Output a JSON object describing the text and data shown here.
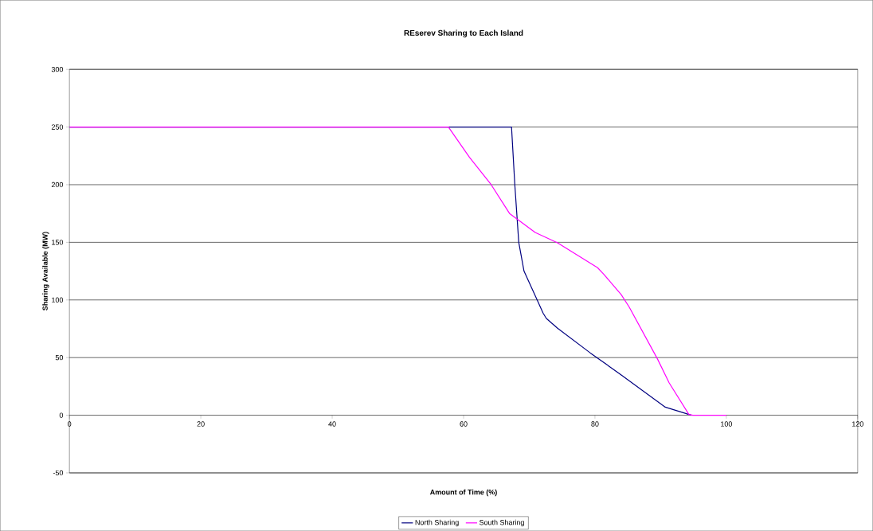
{
  "chart_data": {
    "type": "line",
    "title": "REserev Sharing to Each Island",
    "xlabel": "Amount of Time (%)",
    "ylabel": "Sharing Available (MW)",
    "xlim": [
      0,
      120
    ],
    "xticks": [
      0,
      20,
      40,
      60,
      80,
      100,
      120
    ],
    "ylim": [
      -50,
      300
    ],
    "yticks": [
      -50,
      0,
      50,
      100,
      150,
      200,
      250,
      300
    ],
    "grid": "y",
    "legend": "bottom",
    "series": [
      {
        "name": "North Sharing",
        "color": "#000080",
        "x": [
          0,
          67.3,
          67.8,
          68.4,
          69.2,
          71.2,
          72.1,
          72.6,
          74.3,
          79.3,
          84,
          90.7,
          94.7
        ],
        "values": [
          250,
          250,
          200,
          150,
          125,
          100,
          88.6,
          84,
          75.5,
          54,
          35,
          7,
          0
        ]
      },
      {
        "name": "South Sharing",
        "color": "#ff00ff",
        "x": [
          0,
          57.7,
          60.9,
          64.2,
          67,
          68.2,
          70.9,
          74.3,
          80.4,
          81.3,
          84,
          85.2,
          89.5,
          91.3,
          94.3,
          94.9,
          100
        ],
        "values": [
          250,
          250,
          223.7,
          200,
          175,
          170,
          158.6,
          149.6,
          128,
          122.6,
          104.6,
          94,
          49,
          28,
          0.7,
          0,
          0
        ]
      }
    ]
  }
}
